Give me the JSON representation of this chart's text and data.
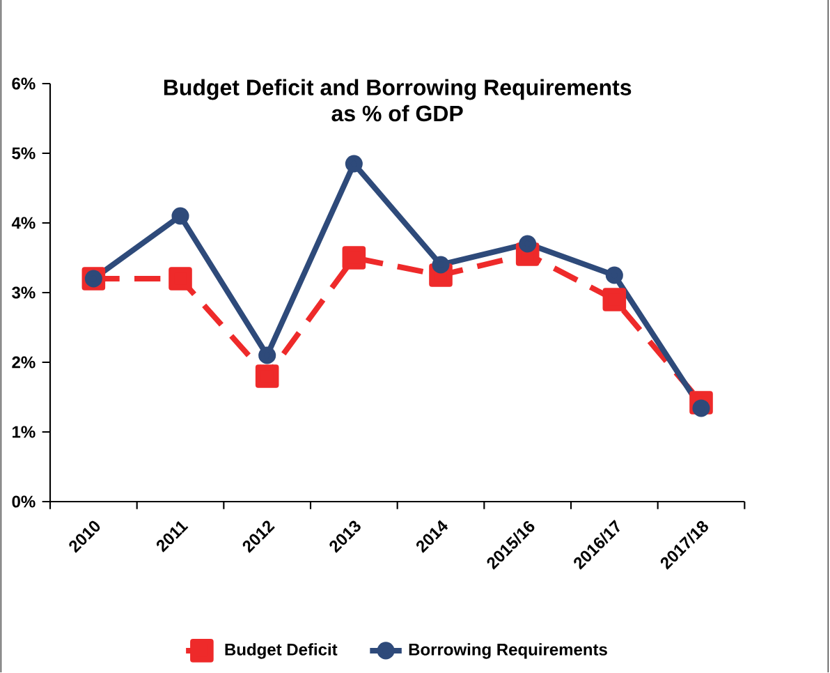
{
  "chart_data": {
    "type": "line",
    "title": "Budget Deficit and Borrowing Requirements\nas % of GDP",
    "categories": [
      "2010",
      "2011",
      "2012",
      "2013",
      "2014",
      "2015/16",
      "2016/17",
      "2017/18"
    ],
    "series": [
      {
        "name": "Budget Deficit",
        "color": "#ee2a2a",
        "marker": "square",
        "line_style": "dashed",
        "values": [
          3.2,
          3.2,
          1.8,
          3.5,
          3.25,
          3.55,
          2.9,
          1.42
        ]
      },
      {
        "name": "Borrowing Requirements",
        "color": "#2e4a7a",
        "marker": "circle",
        "line_style": "solid",
        "values": [
          3.2,
          4.1,
          2.1,
          4.85,
          3.4,
          3.7,
          3.25,
          1.34
        ]
      }
    ],
    "ylim": [
      0,
      6
    ],
    "yticks": [
      {
        "value": 0,
        "label": "0%"
      },
      {
        "value": 1,
        "label": "1%"
      },
      {
        "value": 2,
        "label": "2%"
      },
      {
        "value": 3,
        "label": "3%"
      },
      {
        "value": 4,
        "label": "4%"
      },
      {
        "value": 5,
        "label": "5%"
      },
      {
        "value": 6,
        "label": "6%"
      }
    ],
    "grid": false,
    "legend": "bottom"
  }
}
